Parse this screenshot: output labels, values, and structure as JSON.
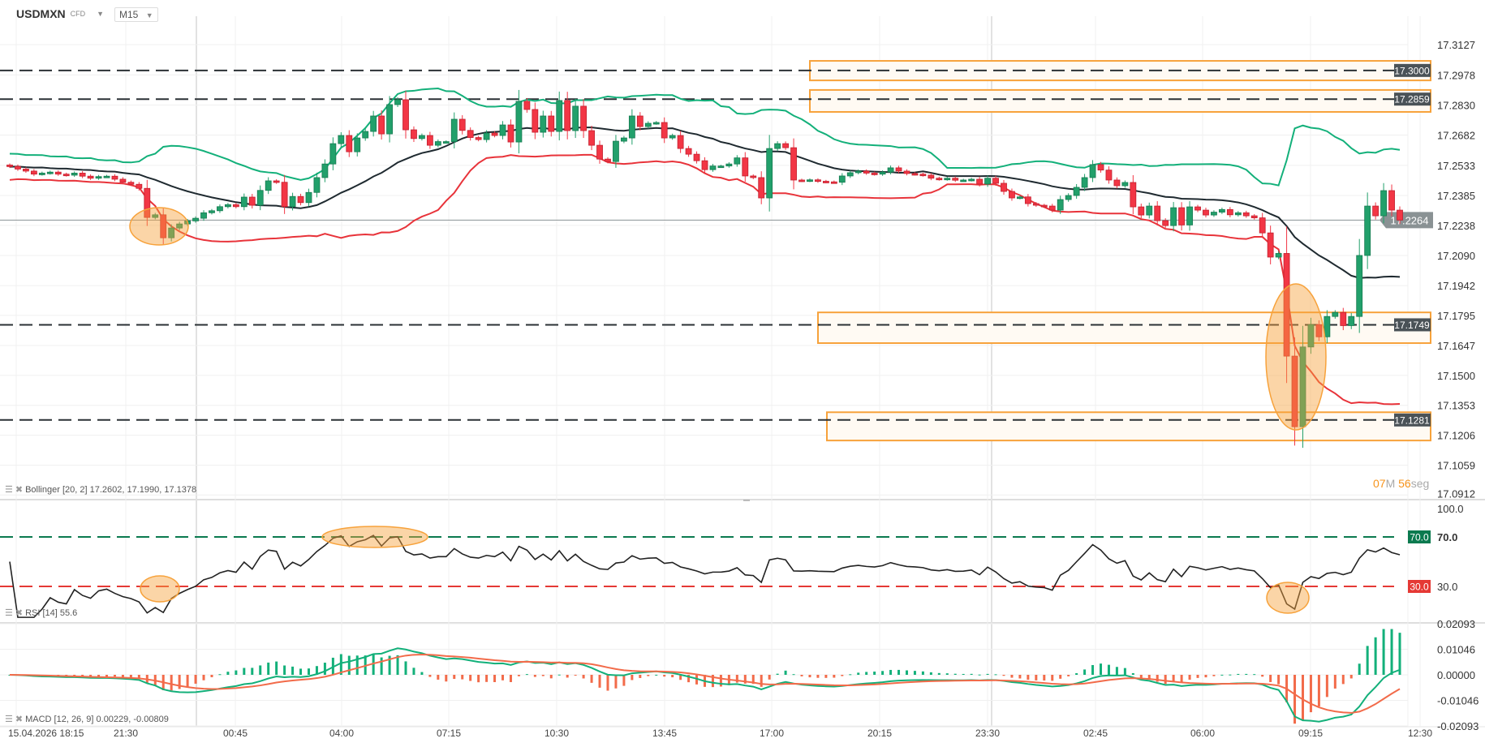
{
  "header": {
    "symbol": "USDMXN",
    "instrument_type": "CFD",
    "timeframe": "M15"
  },
  "main": {
    "price_axis": [
      "17.3127",
      "17.2978",
      "17.2830",
      "17.2682",
      "17.2533",
      "17.2385",
      "17.2238",
      "17.2090",
      "17.1942",
      "17.1795",
      "17.1647",
      "17.1500",
      "17.1353",
      "17.1206",
      "17.1059",
      "17.0912"
    ],
    "current_price": "17.2264",
    "levels": [
      {
        "price": 17.3,
        "label": "17.3000"
      },
      {
        "price": 17.2859,
        "label": "17.2859"
      },
      {
        "price": 17.1749,
        "label": "17.1749"
      },
      {
        "price": 17.1281,
        "label": "17.1281"
      }
    ],
    "zones": [
      {
        "top": 17.3047,
        "bottom": 17.2951
      },
      {
        "top": 17.2904,
        "bottom": 17.2796
      },
      {
        "top": 17.181,
        "bottom": 17.1659
      },
      {
        "top": 17.1319,
        "bottom": 17.118
      }
    ],
    "bollinger_label": "Bollinger [20, 2] 17.2602, 17.1990, 17.1378",
    "countdown": {
      "minutes": "07",
      "m_unit": "M",
      "seconds": "56",
      "s_unit": "seg"
    }
  },
  "rsi": {
    "label": "RSI [14] 55.6",
    "axis": [
      "100.0",
      "70.0",
      "30.0"
    ],
    "overbought": "70.0",
    "oversold": "30.0"
  },
  "macd": {
    "label": "MACD [12, 26, 9] 0.00229, -0.00809",
    "axis": [
      "0.02093",
      "0.01046",
      "0.00000",
      "-0.01046",
      "-0.02093"
    ]
  },
  "time_axis": [
    "15.04.2026 18:15",
    "21:30",
    "00:45",
    "04:00",
    "07:15",
    "10:30",
    "13:45",
    "17:00",
    "20:15",
    "23:30",
    "02:45",
    "06:00",
    "09:15",
    "12:30"
  ],
  "colors": {
    "bull": "#22a06b",
    "bear": "#f23645",
    "bb_upper": "#13b07a",
    "bb_middle": "#1f2a30",
    "bb_lower": "#e8333a",
    "zone": "#f7a23b",
    "annotation": "#f7a23b",
    "rsi_line": "#222",
    "rsi_overbought": "#0b7a4f",
    "rsi_oversold": "#e53935",
    "macd_line": "#13b07a",
    "signal_line": "#f26b4a",
    "level_label_bg": "#4a5257",
    "current_price_bg": "#8a9294"
  },
  "chart_data": {
    "type": "candlestick",
    "symbol": "USDMXN",
    "interval": "M15",
    "first_open": 17.2535,
    "closes": [
      17.2528,
      17.2515,
      17.2505,
      17.249,
      17.2495,
      17.25,
      17.249,
      17.2485,
      17.2495,
      17.248,
      17.247,
      17.2478,
      17.248,
      17.2465,
      17.245,
      17.244,
      17.242,
      17.2277,
      17.229,
      17.2177,
      17.2225,
      17.2245,
      17.226,
      17.2273,
      17.23,
      17.231,
      17.233,
      17.234,
      17.233,
      17.2377,
      17.2337,
      17.241,
      17.2457,
      17.245,
      17.233,
      17.238,
      17.235,
      17.24,
      17.2473,
      17.254,
      17.264,
      17.268,
      17.26,
      17.2668,
      17.27,
      17.2776,
      17.2688,
      17.2832,
      17.2856,
      17.2708,
      17.2665,
      17.268,
      17.2632,
      17.265,
      17.265,
      17.276,
      17.2705,
      17.267,
      17.266,
      17.2692,
      17.268,
      17.2732,
      17.2648,
      17.2848,
      17.2808,
      17.2696,
      17.2776,
      17.27,
      17.2852,
      17.2704,
      17.2824,
      17.2704,
      17.2632,
      17.2564,
      17.2552,
      17.2652,
      17.2668,
      17.2776,
      17.2724,
      17.274,
      17.2744,
      17.2668,
      17.268,
      17.2616,
      17.2588,
      17.2556,
      17.2512,
      17.253,
      17.253,
      17.254,
      17.257,
      17.2481,
      17.2473,
      17.2373,
      17.2616,
      17.264,
      17.262,
      17.2461,
      17.2458,
      17.2462,
      17.2455,
      17.2452,
      17.245,
      17.2481,
      17.2497,
      17.2505,
      17.2495,
      17.249,
      17.25,
      17.2521,
      17.2505,
      17.2493,
      17.249,
      17.2485,
      17.247,
      17.2465,
      17.247,
      17.246,
      17.2461,
      17.2465,
      17.2441,
      17.247,
      17.2445,
      17.2405,
      17.2373,
      17.2378,
      17.2345,
      17.2337,
      17.2333,
      17.2313,
      17.2365,
      17.2385,
      17.2425,
      17.2473,
      17.2537,
      17.251,
      17.2461,
      17.2433,
      17.2449,
      17.2329,
      17.2289,
      17.2333,
      17.2261,
      17.2237,
      17.2325,
      17.224,
      17.2329,
      17.2313,
      17.2289,
      17.2303,
      17.2316,
      17.229,
      17.23,
      17.2285,
      17.2275,
      17.2201,
      17.2082,
      17.21,
      17.1595,
      17.1248,
      17.164,
      17.175,
      17.169,
      17.179,
      17.181,
      17.1745,
      17.179,
      17.209,
      17.2333,
      17.2285,
      17.2409,
      17.2313,
      17.2264
    ],
    "price_range": [
      17.0912,
      17.3127
    ],
    "indicators": {
      "bollinger": {
        "period": 20,
        "stddev": 2
      },
      "rsi": {
        "period": 14,
        "range": [
          0,
          100
        ]
      },
      "macd": {
        "fast": 12,
        "slow": 26,
        "signal": 9,
        "range": [
          -0.02093,
          0.02093
        ]
      }
    },
    "grid": true
  }
}
